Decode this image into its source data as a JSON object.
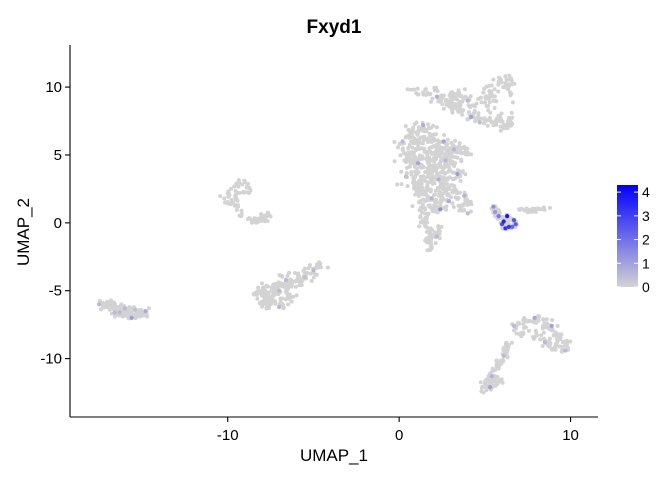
{
  "chart_data": {
    "type": "scatter",
    "title": "Fxyd1",
    "xlabel": "UMAP_1",
    "ylabel": "UMAP_2",
    "xlim": [
      -19.2,
      11.6
    ],
    "ylim": [
      -14.3,
      13.1
    ],
    "x_ticks": [
      {
        "value": -10,
        "label": "-10"
      },
      {
        "value": 0,
        "label": "0"
      },
      {
        "value": 10,
        "label": "10"
      }
    ],
    "y_ticks": [
      {
        "value": 10,
        "label": "10"
      },
      {
        "value": 5,
        "label": "5"
      },
      {
        "value": 0,
        "label": "0"
      },
      {
        "value": -5,
        "label": "-5"
      },
      {
        "value": -10,
        "label": "-10"
      }
    ],
    "grid": false,
    "legend": {
      "placement": "right",
      "type": "colorbar",
      "min": 0,
      "max": 4.3,
      "ticks": [
        {
          "value": 0,
          "label": "0"
        },
        {
          "value": 1,
          "label": "1"
        },
        {
          "value": 2,
          "label": "2"
        },
        {
          "value": 3,
          "label": "3"
        },
        {
          "value": 4,
          "label": "4"
        }
      ]
    },
    "colors": {
      "low": "#D3D3D3",
      "high": "#0000FF"
    },
    "clusters": [
      {
        "id": "c1",
        "points": [
          [
            -17.5,
            -6.0
          ],
          [
            -17.1,
            -6.2
          ],
          [
            -16.6,
            -6.6
          ],
          [
            -16.1,
            -6.9
          ],
          [
            -15.6,
            -7.0
          ],
          [
            -15.1,
            -6.7
          ],
          [
            -14.8,
            -6.5
          ],
          [
            -15.4,
            -6.4
          ],
          [
            -16.0,
            -6.3
          ],
          [
            -16.7,
            -6.1
          ],
          [
            -17.3,
            -5.9
          ],
          [
            -16.3,
            -6.6
          ],
          [
            -15.8,
            -6.8
          ],
          [
            -15.2,
            -6.9
          ],
          [
            -14.9,
            -6.8
          ]
        ],
        "expr": [
          0.6,
          0,
          0.5,
          0,
          1.1,
          0,
          0.8,
          0.4,
          0.5,
          0,
          0,
          0.5,
          0,
          0,
          0
        ],
        "n": 130,
        "sx": 0.35,
        "sy": 0.22
      },
      {
        "id": "c2",
        "points": [
          [
            -8.0,
            -5.8
          ],
          [
            -7.5,
            -5.5
          ],
          [
            -7.0,
            -5.0
          ],
          [
            -6.5,
            -4.6
          ],
          [
            -6.0,
            -4.3
          ],
          [
            -5.5,
            -4.0
          ],
          [
            -5.0,
            -3.5
          ],
          [
            -4.6,
            -3.0
          ],
          [
            -8.3,
            -5.3
          ],
          [
            -7.8,
            -5.0
          ],
          [
            -7.2,
            -4.5
          ],
          [
            -6.6,
            -4.2
          ],
          [
            -7.6,
            -6.0
          ],
          [
            -7.0,
            -6.2
          ],
          [
            -6.4,
            -5.6
          ]
        ],
        "expr": [
          0,
          0,
          0.5,
          0,
          0,
          0.4,
          0.6,
          0,
          0,
          0,
          0,
          0.5,
          0,
          0.6,
          0
        ],
        "n": 200,
        "sx": 0.38,
        "sy": 0.35
      },
      {
        "id": "c3",
        "points": [
          [
            -10.2,
            1.8
          ],
          [
            -9.8,
            2.5
          ],
          [
            -9.5,
            2.9
          ],
          [
            -9.0,
            3.0
          ],
          [
            -8.8,
            2.6
          ],
          [
            -9.3,
            2.2
          ],
          [
            -9.7,
            1.5
          ],
          [
            -9.4,
            1.2
          ]
        ],
        "expr": [
          0,
          0,
          0,
          0,
          0,
          0,
          0,
          0
        ],
        "n": 45,
        "sx": 0.28,
        "sy": 0.28
      },
      {
        "id": "c4",
        "points": [
          [
            -9.2,
            0.5
          ],
          [
            -8.6,
            0.2
          ],
          [
            -8.0,
            0.4
          ],
          [
            -7.6,
            0.6
          ],
          [
            -7.8,
            0.2
          ],
          [
            -8.4,
            0.1
          ]
        ],
        "expr": [
          0,
          0,
          0,
          0,
          0,
          0
        ],
        "n": 32,
        "sx": 0.2,
        "sy": 0.15
      },
      {
        "id": "c5",
        "points": [
          [
            0.2,
            6.0
          ],
          [
            0.8,
            6.8
          ],
          [
            1.4,
            7.2
          ],
          [
            2.0,
            6.5
          ],
          [
            2.6,
            6.0
          ],
          [
            3.2,
            5.4
          ],
          [
            0.5,
            5.0
          ],
          [
            1.1,
            4.4
          ],
          [
            1.7,
            3.8
          ],
          [
            2.3,
            3.2
          ],
          [
            2.9,
            2.6
          ],
          [
            3.4,
            3.6
          ],
          [
            1.2,
            2.5
          ],
          [
            1.9,
            1.8
          ],
          [
            2.4,
            1.0
          ],
          [
            1.4,
            1.2
          ],
          [
            2.7,
            4.6
          ],
          [
            3.8,
            5.6
          ],
          [
            0.4,
            3.4
          ],
          [
            2.1,
            5.2
          ],
          [
            1.6,
            0.4
          ],
          [
            2.9,
            1.6
          ]
        ],
        "expr": [
          0.5,
          0,
          0.8,
          0,
          1.0,
          0.6,
          0,
          0.9,
          0,
          0.7,
          0,
          1.1,
          0,
          0.6,
          1.4,
          0,
          0.5,
          0,
          0.4,
          0,
          0,
          0.8
        ],
        "n": 520,
        "sx": 0.5,
        "sy": 0.5
      },
      {
        "id": "c6",
        "points": [
          [
            1.4,
            0.0
          ],
          [
            1.8,
            -0.6
          ],
          [
            2.2,
            -1.0
          ],
          [
            1.6,
            -1.4
          ],
          [
            1.8,
            -2.0
          ],
          [
            2.3,
            -0.4
          ]
        ],
        "expr": [
          0,
          0,
          0.5,
          0,
          0,
          0
        ],
        "n": 45,
        "sx": 0.25,
        "sy": 0.35
      },
      {
        "id": "c7",
        "points": [
          [
            0.7,
            9.8
          ],
          [
            1.4,
            9.6
          ],
          [
            2.2,
            9.3
          ],
          [
            2.9,
            8.7
          ],
          [
            3.6,
            8.3
          ],
          [
            4.2,
            7.8
          ],
          [
            4.7,
            7.4
          ],
          [
            5.5,
            7.2
          ],
          [
            6.2,
            7.0
          ],
          [
            6.6,
            7.3
          ],
          [
            5.3,
            9.5
          ],
          [
            5.8,
            10.4
          ],
          [
            6.2,
            10.8
          ],
          [
            6.6,
            10.2
          ],
          [
            5.5,
            9.0
          ],
          [
            4.0,
            9.0
          ],
          [
            3.1,
            9.5
          ]
        ],
        "expr": [
          0,
          0,
          0.7,
          0,
          0,
          1.0,
          0.5,
          0,
          0,
          0,
          0,
          0,
          0,
          0,
          0,
          0.6,
          0
        ],
        "n": 230,
        "sx": 0.33,
        "sy": 0.3
      },
      {
        "id": "c8",
        "points": [
          [
            3.3,
            2.4
          ],
          [
            3.8,
            2.0
          ],
          [
            4.1,
            1.5
          ],
          [
            3.6,
            1.2
          ],
          [
            4.0,
            0.7
          ]
        ],
        "expr": [
          0,
          0.7,
          0,
          0,
          0.5
        ],
        "n": 32,
        "sx": 0.2,
        "sy": 0.25
      },
      {
        "id": "c9",
        "points": [
          [
            5.5,
            1.2
          ],
          [
            5.8,
            0.5
          ],
          [
            6.1,
            0.1
          ],
          [
            6.4,
            -0.3
          ],
          [
            6.7,
            0.2
          ],
          [
            6.3,
            0.5
          ],
          [
            6.0,
            -0.1
          ],
          [
            6.6,
            -0.3
          ],
          [
            5.6,
            0.8
          ],
          [
            6.2,
            -0.4
          ],
          [
            6.8,
            -0.1
          ]
        ],
        "expr": [
          1.4,
          1.9,
          3.6,
          3.2,
          2.6,
          3.9,
          2.8,
          2.2,
          1.2,
          3.3,
          2.4
        ],
        "n": 70,
        "sx": 0.17,
        "sy": 0.17
      },
      {
        "id": "c10",
        "points": [
          [
            7.0,
            1.0
          ],
          [
            7.6,
            0.8
          ],
          [
            8.2,
            1.0
          ],
          [
            8.8,
            1.1
          ],
          [
            7.4,
            0.9
          ]
        ],
        "expr": [
          0,
          0,
          0,
          0,
          0
        ],
        "n": 26,
        "sx": 0.22,
        "sy": 0.1
      },
      {
        "id": "c11",
        "points": [
          [
            6.7,
            -7.6
          ],
          [
            7.3,
            -7.2
          ],
          [
            7.9,
            -7.0
          ],
          [
            8.4,
            -7.1
          ],
          [
            8.9,
            -7.6
          ],
          [
            9.3,
            -8.2
          ],
          [
            9.8,
            -8.8
          ],
          [
            9.7,
            -9.4
          ],
          [
            9.1,
            -9.3
          ],
          [
            8.5,
            -8.8
          ],
          [
            7.8,
            -8.4
          ],
          [
            7.1,
            -8.2
          ]
        ],
        "expr": [
          0.5,
          0,
          0.9,
          0,
          1.0,
          0,
          0,
          0.5,
          0,
          0.6,
          0,
          0
        ],
        "n": 120,
        "sx": 0.25,
        "sy": 0.22
      },
      {
        "id": "c12",
        "points": [
          [
            6.4,
            -9.0
          ],
          [
            6.1,
            -9.8
          ],
          [
            5.8,
            -10.6
          ],
          [
            5.4,
            -11.3
          ],
          [
            5.0,
            -11.8
          ],
          [
            4.8,
            -12.4
          ],
          [
            5.3,
            -12.1
          ],
          [
            5.8,
            -11.7
          ]
        ],
        "expr": [
          0,
          0.5,
          0,
          0.7,
          0,
          0,
          1.0,
          0
        ],
        "n": 90,
        "sx": 0.22,
        "sy": 0.22
      }
    ]
  }
}
